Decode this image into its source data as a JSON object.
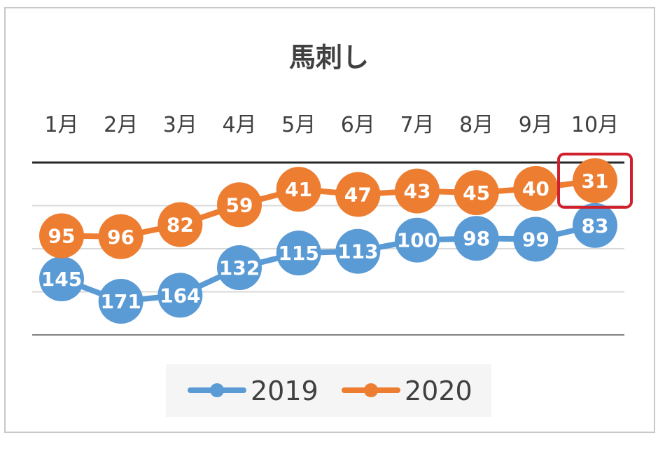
{
  "chart_data": {
    "type": "line",
    "title": "馬刺し",
    "categories": [
      "1月",
      "2月",
      "3月",
      "4月",
      "5月",
      "6月",
      "7月",
      "8月",
      "9月",
      "10月"
    ],
    "y_axis": {
      "inverted": true,
      "range": [
        10,
        210
      ],
      "gridlines": [
        10,
        60,
        110,
        160,
        210
      ],
      "tick_labels_visible": false
    },
    "series": [
      {
        "name": "2019",
        "color": "#5b9bd5",
        "values": [
          145,
          171,
          164,
          132,
          115,
          113,
          100,
          98,
          99,
          83
        ]
      },
      {
        "name": "2020",
        "color": "#ed7d31",
        "values": [
          95,
          96,
          82,
          59,
          41,
          47,
          43,
          45,
          40,
          31
        ]
      }
    ],
    "legend_position": "bottom",
    "highlight": {
      "series": "2020",
      "category": "10月",
      "color": "#d0202e"
    }
  }
}
